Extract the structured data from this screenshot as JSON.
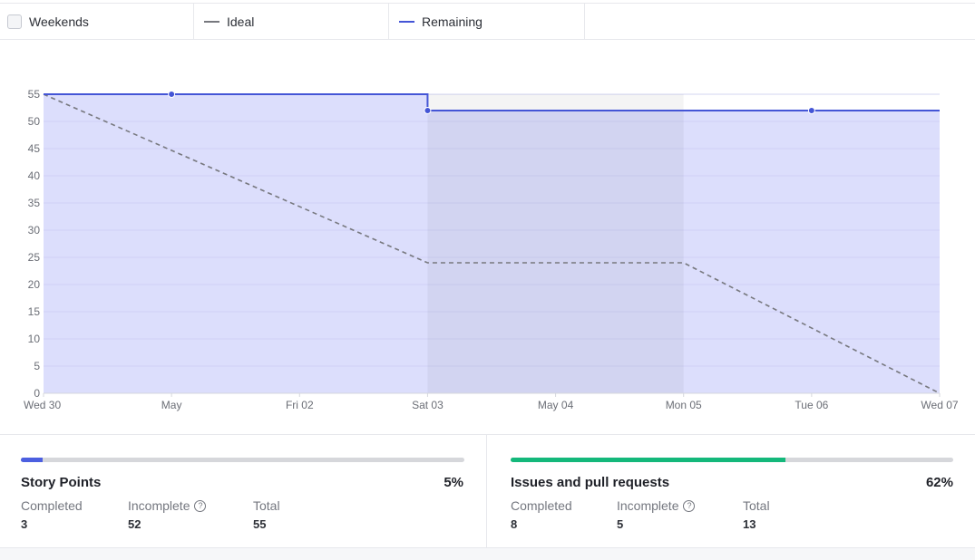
{
  "legend": {
    "weekends_label": "Weekends",
    "ideal_label": "Ideal",
    "remaining_label": "Remaining",
    "ideal_color": "#77787e",
    "remaining_color": "#4455d6"
  },
  "chart_data": {
    "type": "line",
    "x_ticks": [
      "Wed 30",
      "May",
      "Fri 02",
      "Sat 03",
      "May 04",
      "Mon 05",
      "Tue 06",
      "Wed 07"
    ],
    "y_ticks": [
      0,
      5,
      10,
      15,
      20,
      25,
      30,
      35,
      40,
      45,
      50,
      55
    ],
    "ylim": [
      0,
      55
    ],
    "grid": true,
    "series": [
      {
        "name": "Ideal",
        "style": "dashed",
        "color": "#77787e",
        "points": [
          {
            "x": "Wed 30",
            "y": 55
          },
          {
            "x": "Sat 03",
            "y": 24
          },
          {
            "x": "Mon 05",
            "y": 24
          },
          {
            "x": "Wed 07",
            "y": 0
          }
        ]
      },
      {
        "name": "Remaining",
        "style": "step",
        "color": "#4455d6",
        "fill": "#dcdefc",
        "points": [
          {
            "x": "Wed 30",
            "y": 55,
            "marker": false
          },
          {
            "x": "May",
            "y": 55,
            "marker": true
          },
          {
            "x": "Sat 03",
            "y": 55,
            "marker": false
          },
          {
            "x": "Sat 03",
            "y": 52,
            "marker": true
          },
          {
            "x": "Tue 06",
            "y": 52,
            "marker": true
          },
          {
            "x": "Wed 07",
            "y": 52,
            "marker": false
          }
        ]
      }
    ],
    "weekend_band": {
      "from": "Sat 03",
      "to": "Mon 05"
    }
  },
  "story_points": {
    "title": "Story Points",
    "percent_label": "5%",
    "progress_fraction": 0.05,
    "bar_color": "#4c5fe0",
    "completed_label": "Completed",
    "completed_value": "3",
    "incomplete_label": "Incomplete",
    "incomplete_value": "52",
    "total_label": "Total",
    "total_value": "55"
  },
  "issues": {
    "title": "Issues and pull requests",
    "percent_label": "62%",
    "progress_fraction": 0.62,
    "bar_color": "#14b87b",
    "completed_label": "Completed",
    "completed_value": "8",
    "incomplete_label": "Incomplete",
    "incomplete_value": "5",
    "total_label": "Total",
    "total_value": "13"
  },
  "help_icon_glyph": "?"
}
